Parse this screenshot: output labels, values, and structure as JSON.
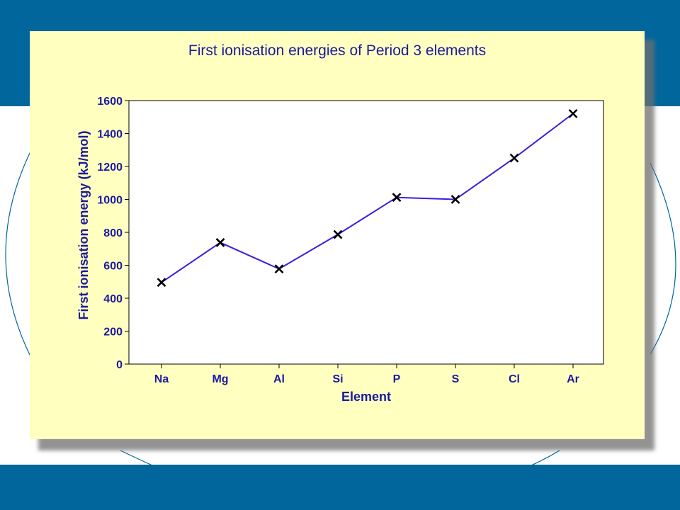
{
  "chart_data": {
    "type": "line",
    "title": "First ionisation energies of Period 3 elements",
    "xlabel": "Element",
    "ylabel": "First ionisation energy (kJ/mol)",
    "categories": [
      "Na",
      "Mg",
      "Al",
      "Si",
      "P",
      "S",
      "Cl",
      "Ar"
    ],
    "values": [
      496,
      738,
      578,
      787,
      1012,
      1000,
      1251,
      1521
    ],
    "ylim": [
      0,
      1600
    ],
    "yticks": [
      "0",
      "200",
      "400",
      "600",
      "800",
      "1000",
      "1200",
      "1400",
      "1600"
    ],
    "grid": false,
    "legend": "none",
    "marker": "x",
    "line_color": "#3a1ee0",
    "marker_color": "#000000",
    "text_color": "#1a1aa0"
  },
  "colors": {
    "band": "#00669c",
    "panel": "#ffffc0"
  }
}
